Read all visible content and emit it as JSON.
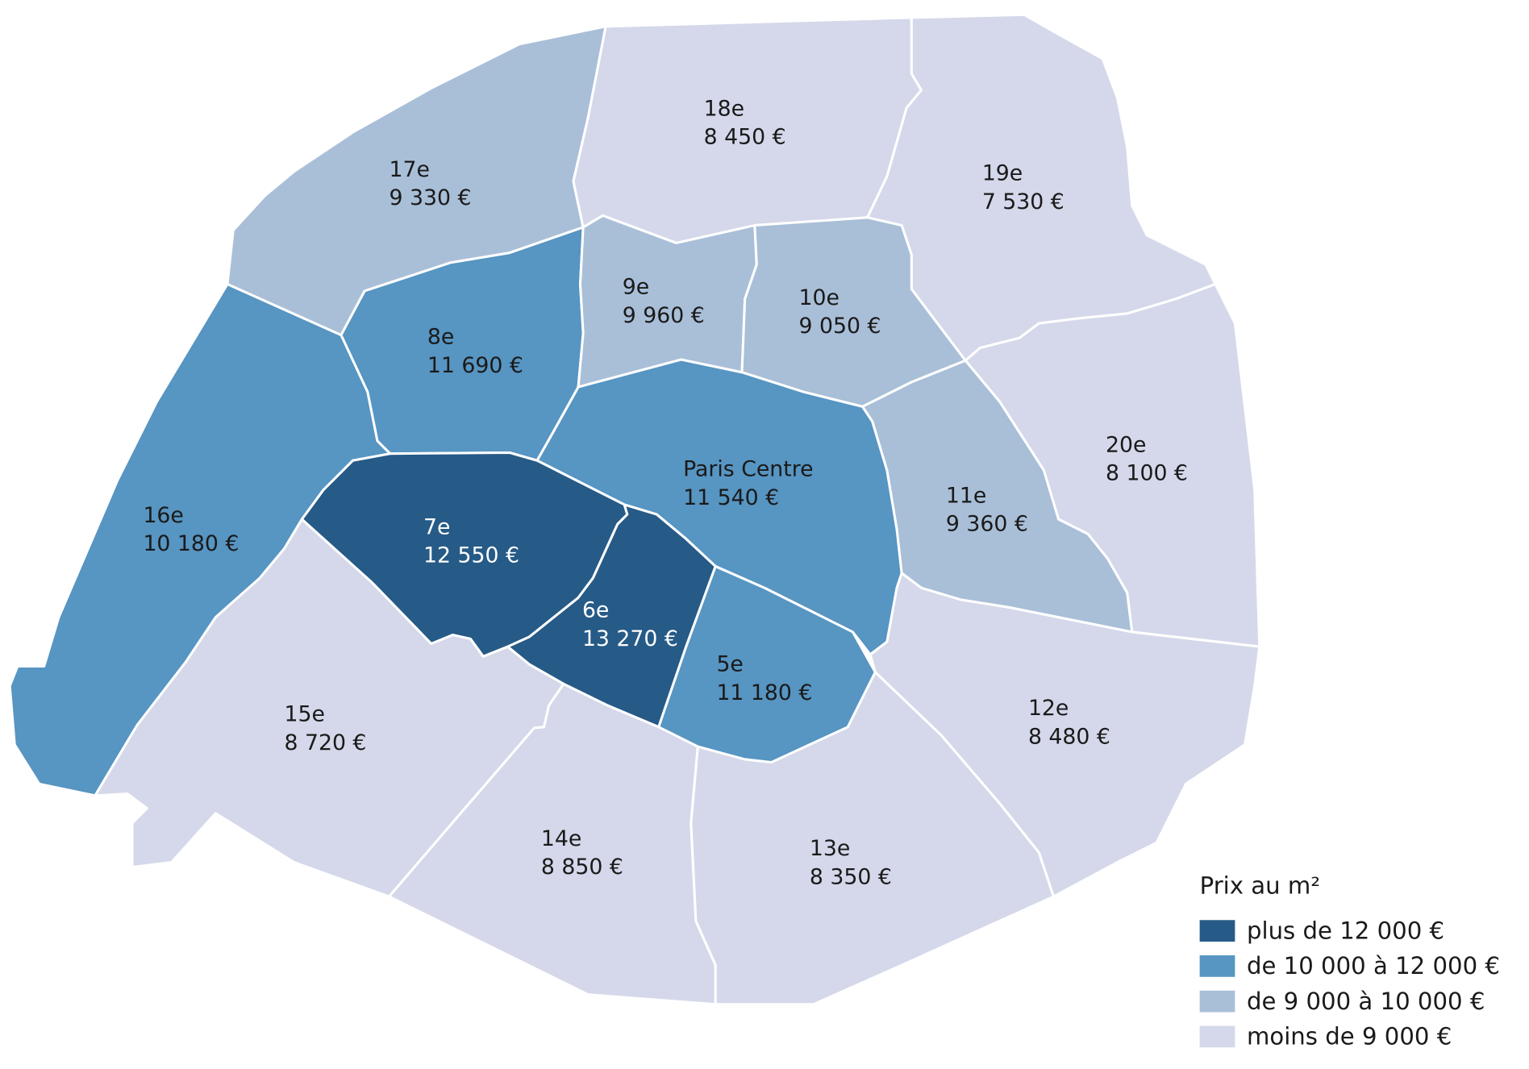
{
  "regions": [
    {
      "name": "17e",
      "price": "9 330 €",
      "color": "#a9bfd8"
    },
    {
      "name": "18e",
      "price": "8 450 €",
      "color": "#d4d8ea"
    },
    {
      "name": "19e",
      "price": "7 530 €",
      "color": "#d4d8ea"
    },
    {
      "name": "20e",
      "price": "8 100 €",
      "color": "#d4d8ea"
    },
    {
      "name": "8e",
      "price": "11 690 €",
      "color": "#5795c2"
    },
    {
      "name": "9e",
      "price": "9 960 €",
      "color": "#a9bfd8"
    },
    {
      "name": "10e",
      "price": "9 050 €",
      "color": "#a9bfd8"
    },
    {
      "name": "Paris Centre",
      "price": "11 540 €",
      "color": "#5795c2"
    },
    {
      "name": "11e",
      "price": "9 360 €",
      "color": "#a9bfd8"
    },
    {
      "name": "16e",
      "price": "10 180 €",
      "color": "#5795c2"
    },
    {
      "name": "7e",
      "price": "12 550 €",
      "color": "#265a87"
    },
    {
      "name": "6e",
      "price": "13 270 €",
      "color": "#265a87"
    },
    {
      "name": "5e",
      "price": "11 180 €",
      "color": "#5795c2"
    },
    {
      "name": "15e",
      "price": "8 720 €",
      "color": "#d4d8ea"
    },
    {
      "name": "14e",
      "price": "8 850 €",
      "color": "#d4d8ea"
    },
    {
      "name": "13e",
      "price": "8 350 €",
      "color": "#d4d8ea"
    },
    {
      "name": "12e",
      "price": "8 480 €",
      "color": "#d4d8ea"
    }
  ],
  "legend": {
    "title": "Prix au m²",
    "items": [
      {
        "label": "plus de 12 000 €",
        "color": "#265a87"
      },
      {
        "label": "de 10 000 à 12 000 €",
        "color": "#5795c2"
      },
      {
        "label": "de 9 000 à 10 000 €",
        "color": "#a9bfd8"
      },
      {
        "label": "moins de 9 000 €",
        "color": "#d4d8ea"
      }
    ]
  }
}
